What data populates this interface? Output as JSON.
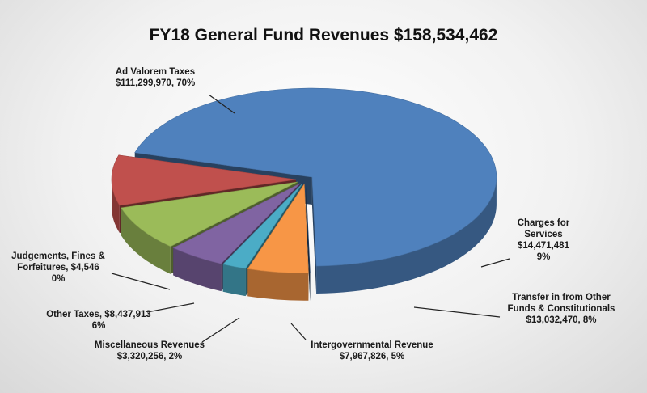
{
  "chart_data": {
    "type": "pie",
    "style": "3d-exploded",
    "title": "FY18 General Fund Revenues $158,534,462",
    "slices": [
      {
        "label": "Ad Valorem Taxes",
        "amount": "$111,299,970",
        "value": 111299970,
        "percent": "70%",
        "color": "#4f81bd"
      },
      {
        "label": "Charges for Services",
        "amount": "$14,471,481",
        "value": 14471481,
        "percent": "9%",
        "color": "#c0504d"
      },
      {
        "label": "Transfer in from Other Funds & Constitutionals",
        "amount": "$13,032,470",
        "value": 13032470,
        "percent": "8%",
        "color": "#9bbb59"
      },
      {
        "label": "Intergovernmental Revenue",
        "amount": "$7,967,826",
        "value": 7967826,
        "percent": "5%",
        "color": "#8064a2"
      },
      {
        "label": "Miscellaneous Revenues",
        "amount": "$3,320,256",
        "value": 3320256,
        "percent": "2%",
        "color": "#4bacc6"
      },
      {
        "label": "Other Taxes",
        "amount": "$8,437,913",
        "value": 8437913,
        "percent": "6%",
        "color": "#f79646"
      },
      {
        "label": "Judgements, Fines & Forfeitures",
        "amount": "$4,546",
        "value": 4546,
        "percent": "0%",
        "color": "#2c4d75"
      }
    ],
    "label_lines": [
      [
        "Ad Valorem Taxes",
        "$111,299,970, 70%"
      ],
      [
        "Charges for",
        "Services",
        "$14,471,481",
        "9%"
      ],
      [
        "Transfer in from Other",
        "Funds & Constitutionals",
        "$13,032,470, 8%"
      ],
      [
        "Intergovernmental Revenue",
        "$7,967,826, 5%"
      ],
      [
        "Miscellaneous Revenues",
        "$3,320,256, 2%"
      ],
      [
        "Other Taxes, $8,437,913",
        "6%"
      ],
      [
        "Judgements, Fines &",
        "Forfeitures, $4,546",
        "0%"
      ]
    ]
  }
}
